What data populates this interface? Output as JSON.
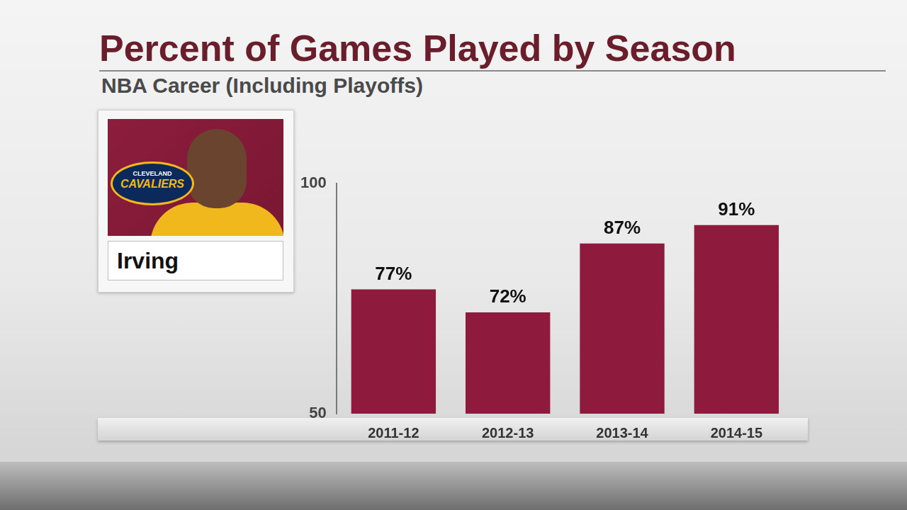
{
  "chart_data": {
    "type": "bar",
    "title": "Percent of Games Played by Season",
    "subtitle": "NBA Career (Including Playoffs)",
    "player": "Irving",
    "logo_text": [
      "CLEVELAND",
      "CAVALIERS"
    ],
    "categories": [
      "2011-12",
      "2012-13",
      "2013-14",
      "2014-15"
    ],
    "values": [
      77,
      72,
      87,
      91
    ],
    "value_labels": [
      "77%",
      "72%",
      "87%",
      "91%"
    ],
    "color": "#8e1b3e",
    "ylim": [
      50,
      100
    ],
    "yticks": [
      50,
      100
    ],
    "grid": false,
    "data_labels": true
  }
}
